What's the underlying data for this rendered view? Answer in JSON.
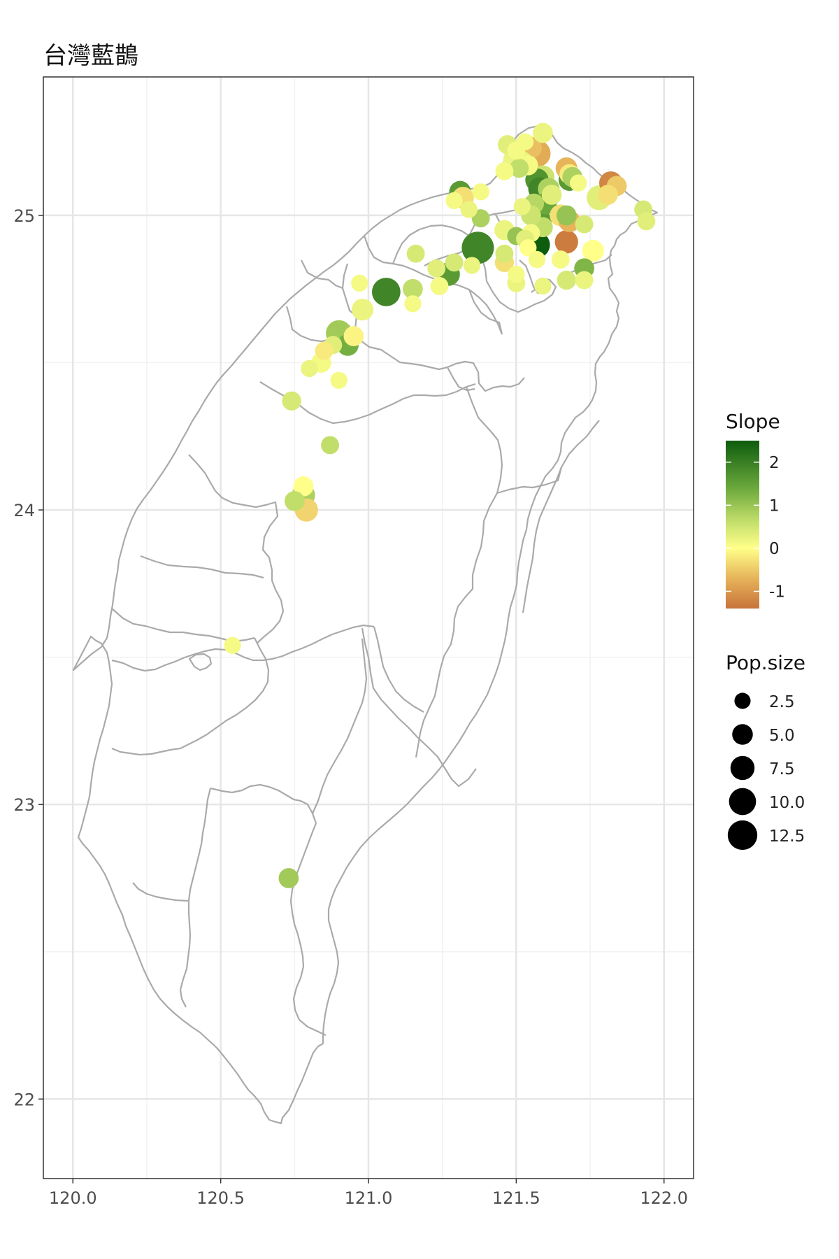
{
  "chart_data": {
    "type": "scatter",
    "title": "台灣藍鵲",
    "xlabel": "",
    "ylabel": "",
    "xlim": [
      119.9,
      122.1
    ],
    "ylim": [
      21.73,
      25.47
    ],
    "x_ticks": [
      "120.0",
      "120.5",
      "121.0",
      "121.5",
      "122.0"
    ],
    "y_ticks": [
      "22",
      "23",
      "24",
      "25"
    ],
    "grid": true,
    "colors": {
      "panel_border": "#333333",
      "grid_major": "#e6e6e6",
      "grid_minor": "#f2f2f2",
      "boundary": "#aaaaaa",
      "slope_high": "#0e5c0e",
      "slope_mid": "#ffff8a",
      "slope_low": "#c8733a"
    },
    "legend": {
      "placement": "right",
      "color_title": "Slope",
      "color_range": [
        -1.4,
        2.5
      ],
      "color_ticks": [
        "2",
        "1",
        "0",
        "-1"
      ],
      "color_tick_values": [
        2,
        1,
        0,
        -1
      ],
      "size_title": "Pop.size",
      "size_labels": [
        "2.5",
        "5.0",
        "7.5",
        "10.0",
        "12.5"
      ],
      "size_values": [
        2.5,
        5.0,
        7.5,
        10.0,
        12.5
      ]
    },
    "points": [
      {
        "lon": 121.37,
        "lat": 24.89,
        "slope": 1.9,
        "size": 13.5
      },
      {
        "lon": 121.06,
        "lat": 24.74,
        "slope": 1.9,
        "size": 10
      },
      {
        "lon": 121.57,
        "lat": 24.9,
        "slope": 2.5,
        "size": 8
      },
      {
        "lon": 121.57,
        "lat": 25.21,
        "slope": -0.8,
        "size": 9
      },
      {
        "lon": 121.55,
        "lat": 25.23,
        "slope": -0.6,
        "size": 5
      },
      {
        "lon": 121.52,
        "lat": 25.18,
        "slope": 0.2,
        "size": 5
      },
      {
        "lon": 121.5,
        "lat": 25.22,
        "slope": 0.1,
        "size": 3
      },
      {
        "lon": 121.53,
        "lat": 25.25,
        "slope": 0.1,
        "size": 2.5
      },
      {
        "lon": 121.59,
        "lat": 25.28,
        "slope": 0.2,
        "size": 4
      },
      {
        "lon": 121.47,
        "lat": 25.24,
        "slope": 0.3,
        "size": 3.5
      },
      {
        "lon": 121.49,
        "lat": 25.19,
        "slope": 0.2,
        "size": 4
      },
      {
        "lon": 121.51,
        "lat": 25.16,
        "slope": 0.6,
        "size": 3.5
      },
      {
        "lon": 121.46,
        "lat": 25.15,
        "slope": 0.1,
        "size": 3
      },
      {
        "lon": 121.54,
        "lat": 25.17,
        "slope": 0.1,
        "size": 4
      },
      {
        "lon": 121.59,
        "lat": 25.13,
        "slope": 0.5,
        "size": 6
      },
      {
        "lon": 121.57,
        "lat": 25.12,
        "slope": 1.7,
        "size": 6
      },
      {
        "lon": 121.58,
        "lat": 25.09,
        "slope": 1.9,
        "size": 6
      },
      {
        "lon": 121.61,
        "lat": 25.09,
        "slope": 0.8,
        "size": 5
      },
      {
        "lon": 121.62,
        "lat": 25.07,
        "slope": 0.3,
        "size": 4
      },
      {
        "lon": 121.6,
        "lat": 25.04,
        "slope": 1.4,
        "size": 5
      },
      {
        "lon": 121.56,
        "lat": 25.04,
        "slope": 0.7,
        "size": 4
      },
      {
        "lon": 121.58,
        "lat": 24.98,
        "slope": 1.6,
        "size": 6
      },
      {
        "lon": 121.59,
        "lat": 24.96,
        "slope": 0.6,
        "size": 4
      },
      {
        "lon": 121.55,
        "lat": 25.0,
        "slope": 0.5,
        "size": 4
      },
      {
        "lon": 121.52,
        "lat": 25.03,
        "slope": 0.2,
        "size": 2.5
      },
      {
        "lon": 121.55,
        "lat": 24.94,
        "slope": 0.1,
        "size": 3
      },
      {
        "lon": 121.5,
        "lat": 24.93,
        "slope": 1.0,
        "size": 3
      },
      {
        "lon": 121.46,
        "lat": 24.95,
        "slope": 0.2,
        "size": 4
      },
      {
        "lon": 121.53,
        "lat": 24.92,
        "slope": 0.3,
        "size": 3
      },
      {
        "lon": 121.54,
        "lat": 24.89,
        "slope": 0.0,
        "size": 2.5
      },
      {
        "lon": 121.46,
        "lat": 24.87,
        "slope": 0.4,
        "size": 3
      },
      {
        "lon": 121.46,
        "lat": 24.84,
        "slope": -0.3,
        "size": 3.5
      },
      {
        "lon": 121.5,
        "lat": 24.8,
        "slope": 0.1,
        "size": 2.5
      },
      {
        "lon": 121.5,
        "lat": 24.77,
        "slope": 0.2,
        "size": 3
      },
      {
        "lon": 121.57,
        "lat": 24.85,
        "slope": 0.1,
        "size": 2.5
      },
      {
        "lon": 121.59,
        "lat": 24.76,
        "slope": 0.2,
        "size": 2.5
      },
      {
        "lon": 121.67,
        "lat": 25.16,
        "slope": -0.7,
        "size": 5
      },
      {
        "lon": 121.68,
        "lat": 25.14,
        "slope": -0.2,
        "size": 4
      },
      {
        "lon": 121.68,
        "lat": 25.12,
        "slope": 1.6,
        "size": 5
      },
      {
        "lon": 121.69,
        "lat": 25.13,
        "slope": 0.8,
        "size": 4
      },
      {
        "lon": 121.71,
        "lat": 25.11,
        "slope": 0.1,
        "size": 2.5
      },
      {
        "lon": 121.82,
        "lat": 25.11,
        "slope": -1.2,
        "size": 6
      },
      {
        "lon": 121.84,
        "lat": 25.1,
        "slope": -0.5,
        "size": 4
      },
      {
        "lon": 121.78,
        "lat": 25.06,
        "slope": 0.3,
        "size": 7
      },
      {
        "lon": 121.81,
        "lat": 25.07,
        "slope": -0.3,
        "size": 4
      },
      {
        "lon": 121.65,
        "lat": 25.0,
        "slope": -0.3,
        "size": 5
      },
      {
        "lon": 121.68,
        "lat": 24.98,
        "slope": -0.7,
        "size": 5
      },
      {
        "lon": 121.67,
        "lat": 25.0,
        "slope": 1.0,
        "size": 4
      },
      {
        "lon": 121.73,
        "lat": 24.97,
        "slope": 0.4,
        "size": 3
      },
      {
        "lon": 121.67,
        "lat": 24.91,
        "slope": -1.3,
        "size": 6
      },
      {
        "lon": 121.76,
        "lat": 24.88,
        "slope": 0.0,
        "size": 5
      },
      {
        "lon": 121.65,
        "lat": 24.85,
        "slope": 0.1,
        "size": 3
      },
      {
        "lon": 121.67,
        "lat": 24.78,
        "slope": 0.4,
        "size": 3.5
      },
      {
        "lon": 121.73,
        "lat": 24.78,
        "slope": 0.2,
        "size": 3
      },
      {
        "lon": 121.73,
        "lat": 24.82,
        "slope": 1.2,
        "size": 4
      },
      {
        "lon": 121.93,
        "lat": 25.02,
        "slope": 0.4,
        "size": 3
      },
      {
        "lon": 121.94,
        "lat": 24.98,
        "slope": 0.3,
        "size": 3
      },
      {
        "lon": 121.31,
        "lat": 25.08,
        "slope": 1.6,
        "size": 5
      },
      {
        "lon": 121.32,
        "lat": 25.06,
        "slope": -0.3,
        "size": 5
      },
      {
        "lon": 121.29,
        "lat": 25.05,
        "slope": 0.1,
        "size": 2.5
      },
      {
        "lon": 121.34,
        "lat": 25.02,
        "slope": 0.2,
        "size": 2.5
      },
      {
        "lon": 121.38,
        "lat": 24.99,
        "slope": 0.8,
        "size": 3
      },
      {
        "lon": 121.38,
        "lat": 25.08,
        "slope": 0.1,
        "size": 2.5
      },
      {
        "lon": 121.16,
        "lat": 24.87,
        "slope": 0.4,
        "size": 3
      },
      {
        "lon": 121.23,
        "lat": 24.82,
        "slope": 0.3,
        "size": 3
      },
      {
        "lon": 121.27,
        "lat": 24.8,
        "slope": 1.6,
        "size": 6
      },
      {
        "lon": 121.29,
        "lat": 24.84,
        "slope": 0.4,
        "size": 3
      },
      {
        "lon": 121.35,
        "lat": 24.83,
        "slope": 0.2,
        "size": 2.5
      },
      {
        "lon": 121.24,
        "lat": 24.76,
        "slope": 0.1,
        "size": 3
      },
      {
        "lon": 121.15,
        "lat": 24.75,
        "slope": 0.6,
        "size": 4
      },
      {
        "lon": 121.15,
        "lat": 24.7,
        "slope": 0.1,
        "size": 2.5
      },
      {
        "lon": 120.97,
        "lat": 24.77,
        "slope": 0.1,
        "size": 2.5
      },
      {
        "lon": 120.98,
        "lat": 24.68,
        "slope": 0.2,
        "size": 5
      },
      {
        "lon": 120.9,
        "lat": 24.6,
        "slope": 0.9,
        "size": 8
      },
      {
        "lon": 120.93,
        "lat": 24.56,
        "slope": 1.3,
        "size": 5
      },
      {
        "lon": 120.95,
        "lat": 24.59,
        "slope": -0.1,
        "size": 4
      },
      {
        "lon": 120.88,
        "lat": 24.56,
        "slope": 0.3,
        "size": 3
      },
      {
        "lon": 120.85,
        "lat": 24.54,
        "slope": -0.2,
        "size": 3
      },
      {
        "lon": 120.84,
        "lat": 24.5,
        "slope": 0.1,
        "size": 4
      },
      {
        "lon": 120.8,
        "lat": 24.48,
        "slope": 0.2,
        "size": 2.5
      },
      {
        "lon": 120.9,
        "lat": 24.44,
        "slope": 0.1,
        "size": 2.5
      },
      {
        "lon": 120.74,
        "lat": 24.37,
        "slope": 0.4,
        "size": 3.5
      },
      {
        "lon": 120.87,
        "lat": 24.22,
        "slope": 0.6,
        "size": 3
      },
      {
        "lon": 120.78,
        "lat": 24.08,
        "slope": 0.0,
        "size": 4
      },
      {
        "lon": 120.78,
        "lat": 24.05,
        "slope": 0.8,
        "size": 6
      },
      {
        "lon": 120.75,
        "lat": 24.03,
        "slope": 0.6,
        "size": 4
      },
      {
        "lon": 120.79,
        "lat": 24.0,
        "slope": -0.4,
        "size": 6
      },
      {
        "lon": 120.54,
        "lat": 23.54,
        "slope": 0.1,
        "size": 2.5
      },
      {
        "lon": 120.73,
        "lat": 22.75,
        "slope": 0.9,
        "size": 4
      }
    ]
  }
}
